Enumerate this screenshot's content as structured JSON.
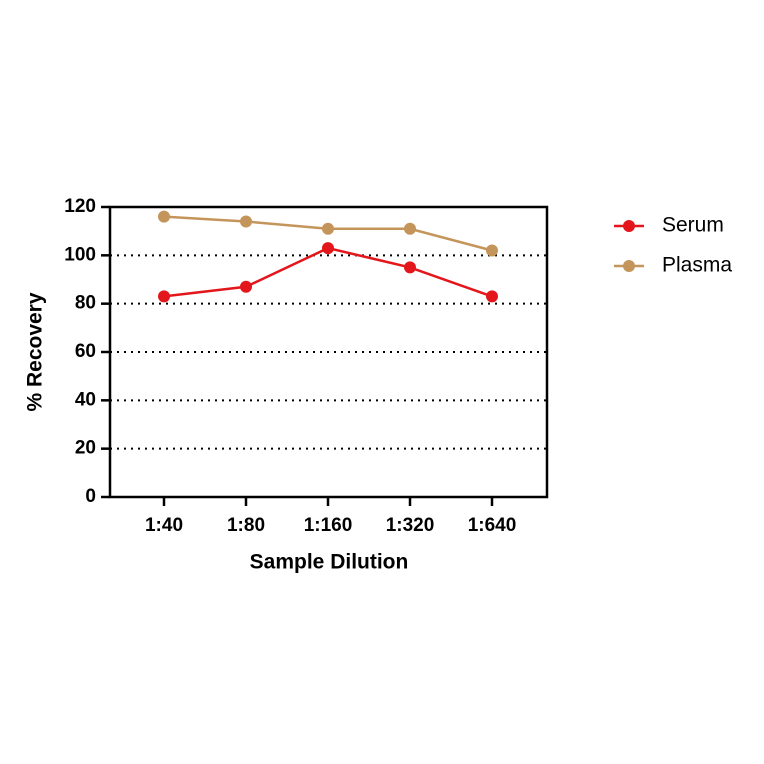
{
  "chart_data": {
    "type": "line",
    "x_label": "Sample Dilution",
    "y_label": "% Recovery",
    "categories": [
      "1:40",
      "1:80",
      "1:160",
      "1:320",
      "1:640"
    ],
    "series": [
      {
        "name": "Serum",
        "color": "#e3171b",
        "values": [
          83,
          87,
          103,
          95,
          83
        ]
      },
      {
        "name": "Plasma",
        "color": "#c4955a",
        "values": [
          116,
          114,
          111,
          111,
          102
        ]
      }
    ],
    "ylim": [
      0,
      120
    ],
    "yticks": [
      0,
      20,
      40,
      60,
      80,
      100,
      120
    ],
    "grid": true,
    "legend": "right"
  }
}
